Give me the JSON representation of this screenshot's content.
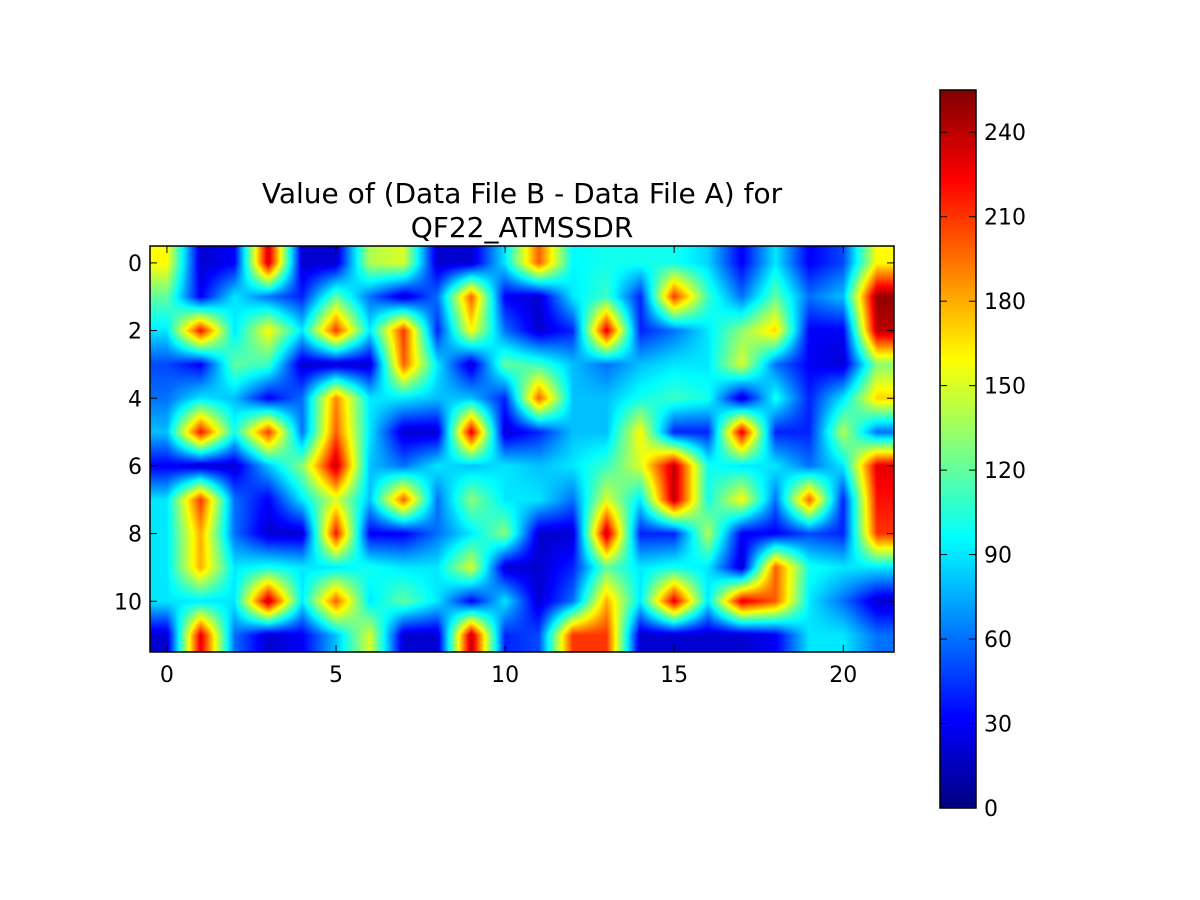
{
  "chart_data": {
    "type": "heatmap",
    "title_lines": [
      "Value of (Data File B - Data File A) for",
      "QF22_ATMSSDR"
    ],
    "xlabel": "",
    "ylabel": "",
    "colormap": "jet",
    "interpolation": "bilinear",
    "grid": false,
    "n_rows": 12,
    "n_cols": 22,
    "x_ticks": [
      0,
      5,
      10,
      15,
      20
    ],
    "x_tick_labels": [
      "0",
      "5",
      "10",
      "15",
      "20"
    ],
    "y_ticks": [
      0,
      2,
      4,
      6,
      8,
      10
    ],
    "y_tick_labels": [
      "0",
      "2",
      "4",
      "6",
      "8",
      "10"
    ],
    "colorbar": {
      "min": 0,
      "max": 255,
      "ticks": [
        0,
        30,
        60,
        90,
        120,
        150,
        180,
        210,
        240
      ],
      "tick_labels": [
        "0",
        "30",
        "60",
        "90",
        "120",
        "150",
        "180",
        "210",
        "240"
      ],
      "placement": "right"
    },
    "values": [
      [
        160,
        20,
        30,
        235,
        20,
        20,
        140,
        150,
        20,
        20,
        90,
        200,
        95,
        100,
        100,
        100,
        85,
        30,
        90,
        30,
        50,
        160
      ],
      [
        120,
        30,
        90,
        60,
        40,
        120,
        60,
        20,
        60,
        200,
        30,
        20,
        90,
        110,
        40,
        210,
        110,
        60,
        120,
        60,
        80,
        250
      ],
      [
        90,
        220,
        90,
        160,
        90,
        210,
        90,
        210,
        40,
        160,
        60,
        20,
        40,
        230,
        40,
        60,
        90,
        130,
        170,
        30,
        30,
        240
      ],
      [
        50,
        30,
        120,
        110,
        20,
        20,
        20,
        200,
        90,
        20,
        120,
        110,
        80,
        60,
        80,
        90,
        90,
        150,
        60,
        30,
        20,
        130
      ],
      [
        60,
        90,
        80,
        30,
        60,
        190,
        90,
        90,
        80,
        80,
        40,
        200,
        80,
        80,
        100,
        110,
        100,
        20,
        100,
        40,
        90,
        170
      ],
      [
        80,
        220,
        100,
        210,
        60,
        200,
        90,
        20,
        20,
        230,
        20,
        40,
        80,
        80,
        160,
        40,
        40,
        230,
        40,
        40,
        140,
        60
      ],
      [
        30,
        20,
        20,
        80,
        130,
        240,
        80,
        60,
        90,
        80,
        90,
        80,
        90,
        110,
        150,
        240,
        100,
        90,
        90,
        60,
        90,
        230
      ],
      [
        90,
        210,
        60,
        30,
        90,
        150,
        80,
        200,
        60,
        130,
        90,
        90,
        60,
        150,
        90,
        240,
        100,
        160,
        60,
        200,
        40,
        220
      ],
      [
        90,
        180,
        60,
        20,
        20,
        220,
        30,
        30,
        60,
        90,
        130,
        20,
        20,
        240,
        40,
        40,
        140,
        30,
        30,
        50,
        40,
        210
      ],
      [
        90,
        180,
        90,
        100,
        90,
        90,
        100,
        90,
        90,
        150,
        20,
        20,
        40,
        120,
        90,
        100,
        90,
        20,
        200,
        100,
        90,
        90
      ],
      [
        90,
        90,
        90,
        240,
        90,
        200,
        90,
        120,
        90,
        30,
        90,
        20,
        60,
        180,
        90,
        230,
        90,
        230,
        200,
        90,
        60,
        20
      ],
      [
        20,
        230,
        60,
        20,
        30,
        80,
        150,
        20,
        20,
        240,
        40,
        50,
        210,
        210,
        20,
        20,
        20,
        20,
        30,
        90,
        90,
        60
      ]
    ]
  }
}
